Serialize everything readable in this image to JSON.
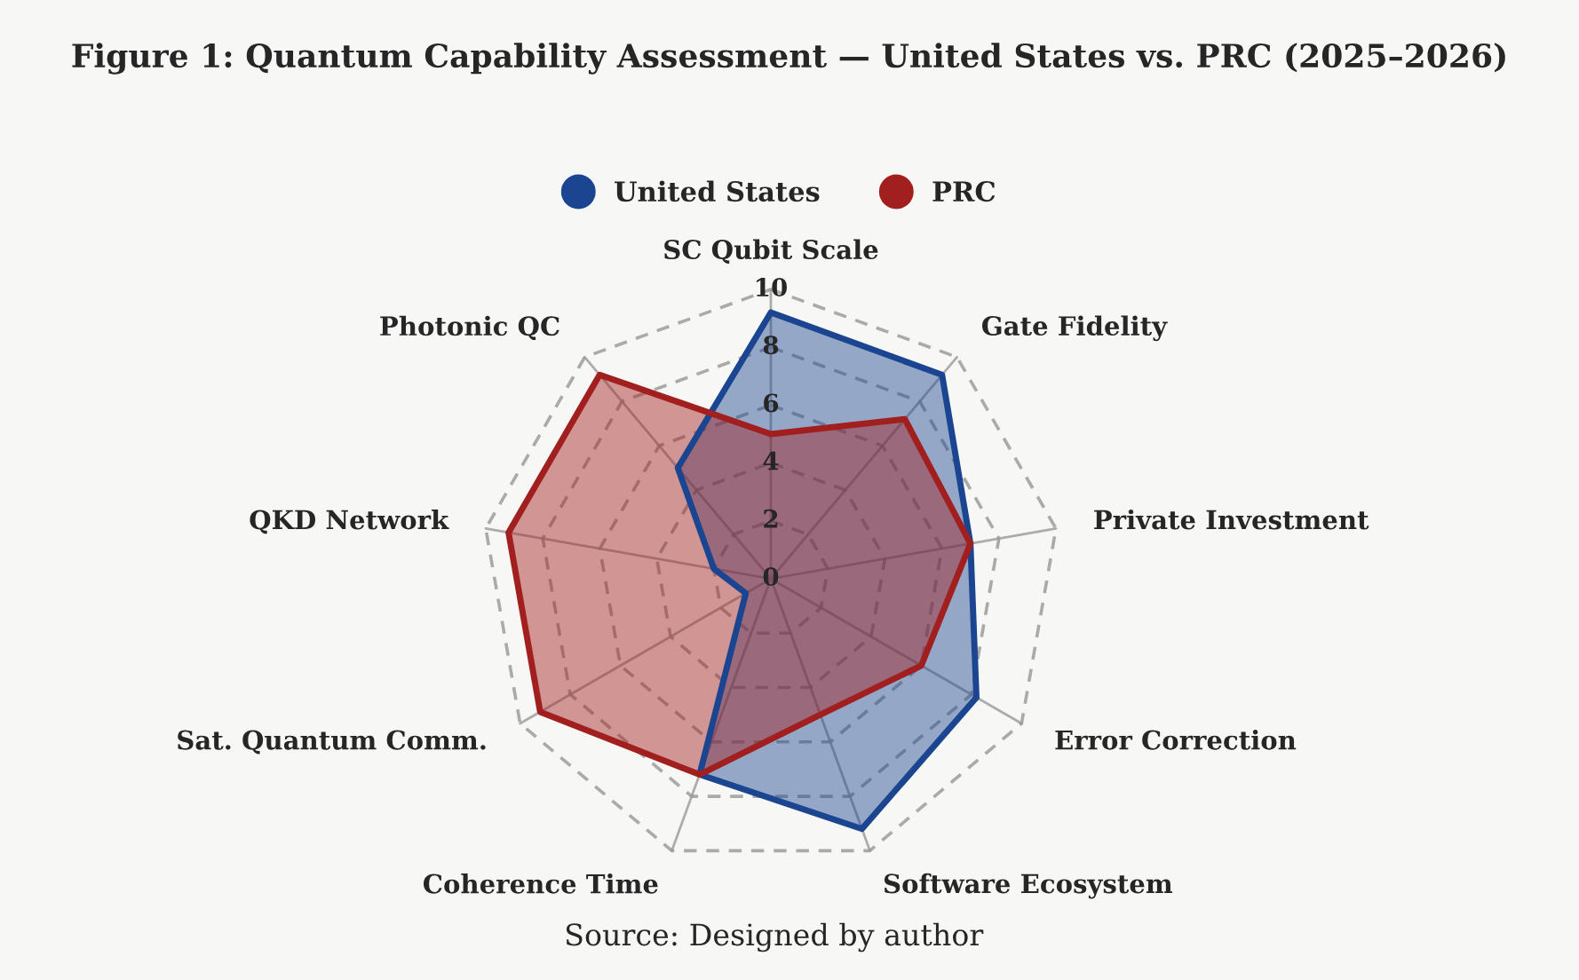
{
  "chart_data": {
    "type": "radar",
    "title": "Figure 1: Quantum Capability Assessment — United States vs. PRC (2025–2026)",
    "categories": [
      "SC Qubit Scale",
      "Gate Fidelity",
      "Private Investment",
      "Error Correction",
      "Software Ecosystem",
      "Coherence Time",
      "Sat. Quantum Comm.",
      "QKD Network",
      "Photonic QC"
    ],
    "series": [
      {
        "name": "United States",
        "color": "#1b4590",
        "values": [
          9.2,
          9.2,
          7,
          8.2,
          9.2,
          7.2,
          1,
          2,
          5
        ]
      },
      {
        "name": "PRC",
        "color": "#a11f1f",
        "values": [
          5,
          7.2,
          7,
          6,
          5,
          7.2,
          9.2,
          9.2,
          9.2
        ]
      }
    ],
    "ylim": [
      0,
      10
    ],
    "yticks": [
      0,
      2,
      4,
      6,
      8,
      10
    ],
    "grid": true,
    "legend": "top",
    "annotations": [
      "Source: Designed by author"
    ]
  }
}
